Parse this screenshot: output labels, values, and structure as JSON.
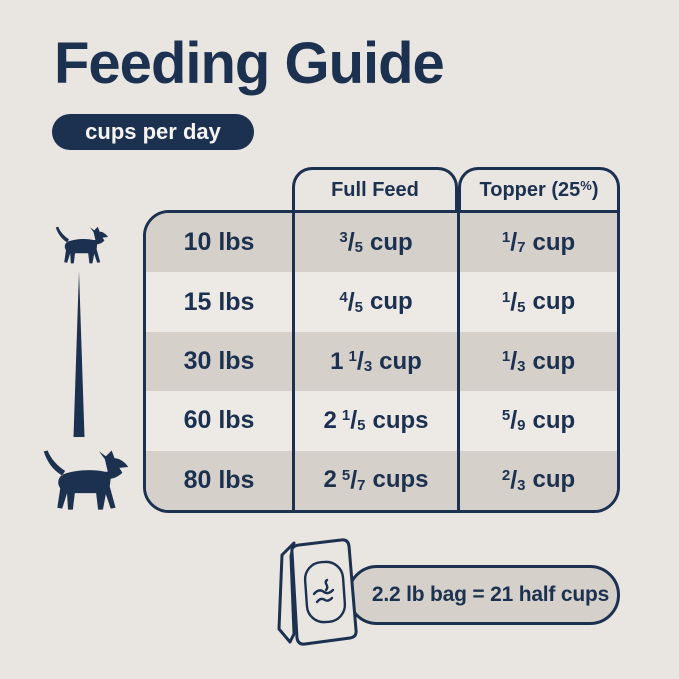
{
  "colors": {
    "background": "#e9e5e0",
    "navy": "#1c3150",
    "row_dark": "#d5d0ca",
    "row_light": "#edeae6",
    "badge_text": "#f5f4f1"
  },
  "header": {
    "title": "Feeding Guide",
    "badge": "cups per day"
  },
  "table": {
    "columns": [
      {
        "label": ""
      },
      {
        "label": "Full Feed"
      },
      {
        "label": "Topper (25%)",
        "prefix": "Topper (25",
        "sup": "%",
        "suffix": ")"
      }
    ],
    "rows": [
      {
        "weight": "10 lbs",
        "full": {
          "num": "3",
          "den": "5",
          "unit": "cup"
        },
        "topper": {
          "num": "1",
          "den": "7",
          "unit": "cup"
        }
      },
      {
        "weight": "15 lbs",
        "full": {
          "num": "4",
          "den": "5",
          "unit": "cup"
        },
        "topper": {
          "num": "1",
          "den": "5",
          "unit": "cup"
        }
      },
      {
        "weight": "30 lbs",
        "full": {
          "whole": "1",
          "num": "1",
          "den": "3",
          "unit": "cup"
        },
        "topper": {
          "num": "1",
          "den": "3",
          "unit": "cup"
        }
      },
      {
        "weight": "60 lbs",
        "full": {
          "whole": "2",
          "num": "1",
          "den": "5",
          "unit": "cups"
        },
        "topper": {
          "num": "5",
          "den": "9",
          "unit": "cup"
        }
      },
      {
        "weight": "80 lbs",
        "full": {
          "whole": "2",
          "num": "5",
          "den": "7",
          "unit": "cups"
        },
        "topper": {
          "num": "2",
          "den": "3",
          "unit": "cup"
        }
      }
    ]
  },
  "footer": {
    "note": "2.2 lb bag = 21 half cups"
  },
  "icons": {
    "small_dog": "small-dog-icon",
    "large_dog": "large-dog-icon",
    "wedge": "size-scale-wedge",
    "bag": "food-bag-icon"
  },
  "chart_data": {
    "type": "table",
    "title": "Feeding Guide",
    "subtitle": "cups per day",
    "categories": [
      "10 lbs",
      "15 lbs",
      "30 lbs",
      "60 lbs",
      "80 lbs"
    ],
    "series": [
      {
        "name": "Full Feed",
        "values": [
          0.6,
          0.8,
          1.333,
          2.2,
          2.714
        ],
        "labels": [
          "3/5 cup",
          "4/5 cup",
          "1 1/3 cup",
          "2 1/5 cups",
          "2 5/7 cups"
        ]
      },
      {
        "name": "Topper (25%)",
        "values": [
          0.143,
          0.2,
          0.333,
          0.556,
          0.667
        ],
        "labels": [
          "1/7 cup",
          "1/5 cup",
          "1/3 cup",
          "5/9 cup",
          "2/3 cup"
        ]
      }
    ],
    "note": "2.2 lb bag = 21 half cups"
  }
}
